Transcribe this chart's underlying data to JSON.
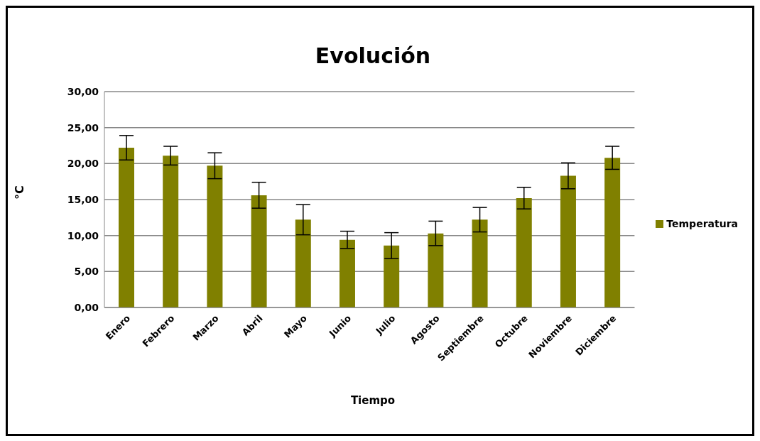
{
  "chart_data": {
    "type": "bar",
    "title": "Evolución",
    "xlabel": "Tiempo",
    "ylabel": "°C",
    "categories": [
      "Enero",
      "Febrero",
      "Marzo",
      "Abril",
      "Mayo",
      "Junio",
      "Julio",
      "Agosto",
      "Septiembre",
      "Octubre",
      "Noviembre",
      "Diciembre"
    ],
    "series": [
      {
        "name": "Temperatura",
        "color": "#808000",
        "values": [
          22.2,
          21.1,
          19.7,
          15.6,
          12.2,
          9.4,
          8.6,
          10.3,
          12.2,
          15.2,
          18.3,
          20.8
        ],
        "errors": [
          1.7,
          1.3,
          1.8,
          1.8,
          2.1,
          1.2,
          1.8,
          1.7,
          1.7,
          1.5,
          1.8,
          1.6
        ]
      }
    ],
    "ylim": [
      0,
      30
    ],
    "yticks": [
      {
        "value": 0,
        "label": "0,00"
      },
      {
        "value": 5,
        "label": "5,00"
      },
      {
        "value": 10,
        "label": "10,00"
      },
      {
        "value": 15,
        "label": "15,00"
      },
      {
        "value": 20,
        "label": "20,00"
      },
      {
        "value": 25,
        "label": "25,00"
      },
      {
        "value": 30,
        "label": "30,00"
      }
    ],
    "grid": "y",
    "legend": "right"
  }
}
